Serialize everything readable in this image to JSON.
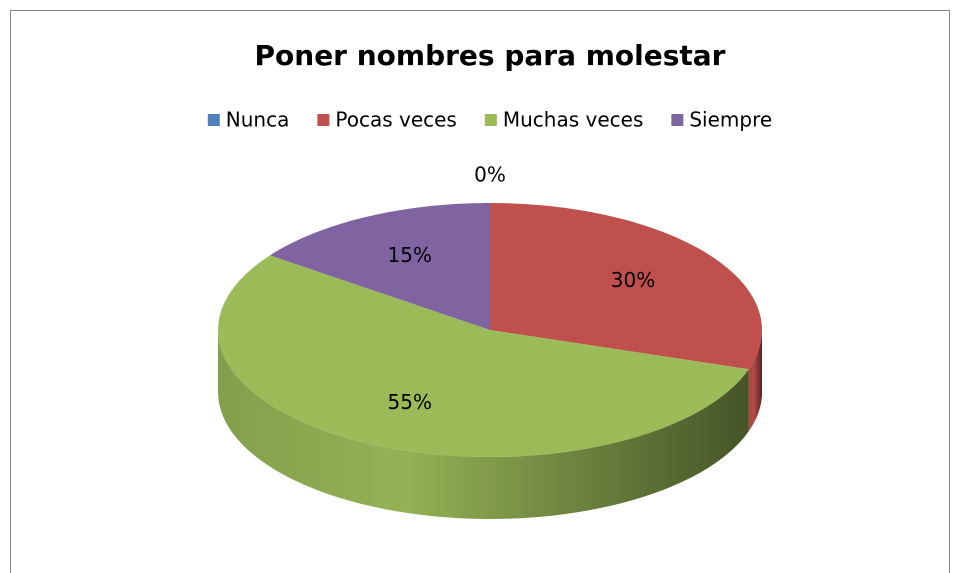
{
  "chart_data": {
    "type": "pie",
    "title": "Poner nombres para molestar",
    "categories": [
      "Nunca",
      "Pocas veces",
      "Muchas veces",
      "Siempre"
    ],
    "values": [
      0,
      30,
      55,
      15
    ],
    "value_labels": [
      "0%",
      "30%",
      "55%",
      "15%"
    ],
    "colors": [
      "#4f81bd",
      "#c0504d",
      "#9bbb59",
      "#8064a2"
    ],
    "legend": "top"
  }
}
